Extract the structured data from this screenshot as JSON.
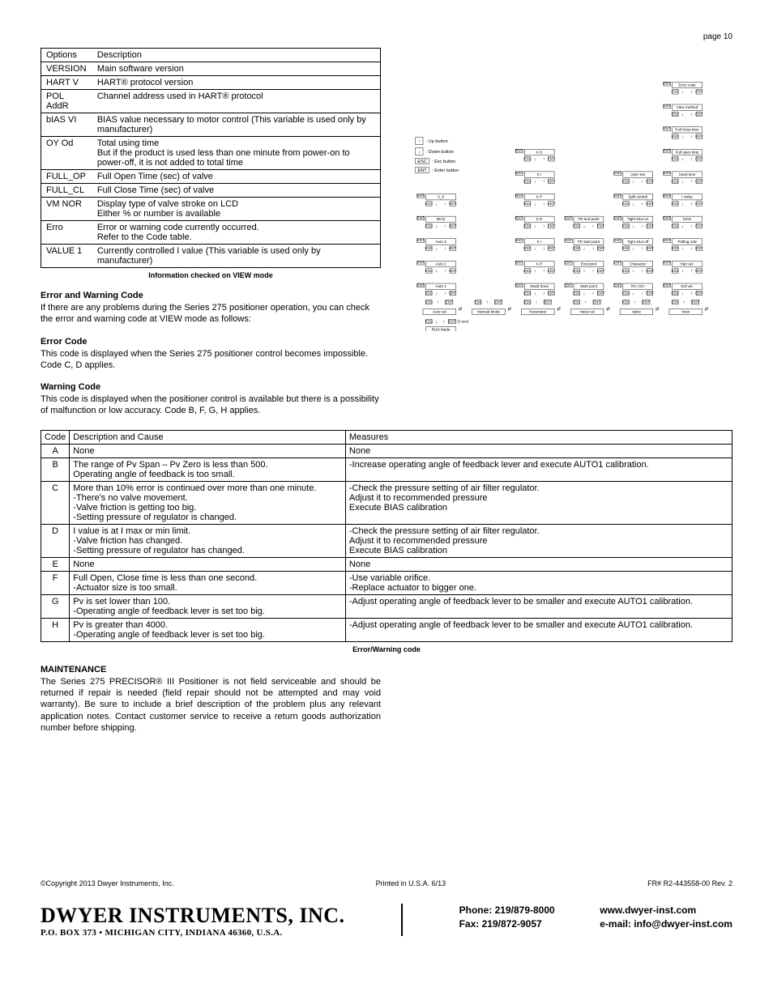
{
  "page_number": "page 10",
  "options_table": {
    "headers": [
      "Options",
      "Description"
    ],
    "rows": [
      [
        "VERSION",
        "Main software version"
      ],
      [
        "HART V",
        "HART® protocol version"
      ],
      [
        "POL AddR",
        "Channel address used in HART® protocol"
      ],
      [
        "bIAS VI",
        "BIAS value necessary to motor control (This variable is used only by manufacturer)"
      ],
      [
        "OY Od",
        "Total using time\nBut if the product is used less than one minute from power-on to power-off, it is not added to total time"
      ],
      [
        "FULL_OP",
        "Full Open Time (sec) of valve"
      ],
      [
        "FULL_CL",
        "Full Close Time (sec) of valve"
      ],
      [
        "VM NOR",
        "Display type of valve stroke on LCD\nEither % or number is available"
      ],
      [
        "Erro",
        "Error or warning code currently occurred.\nRefer to the Code table."
      ],
      [
        "VALUE 1",
        "Currently controlled I value (This variable is used only by manufacturer)"
      ]
    ],
    "caption": "Information checked on VIEW mode"
  },
  "error_warning_section": {
    "heading": "Error and Warning Code",
    "para": "If there are any problems during the Series 275 positioner operation, you can check the error and warning code at VIEW mode as follows:"
  },
  "error_code_section": {
    "heading": "Error Code",
    "para": "This code is displayed when the Series 275 positioner control becomes impossible.  Code C, D applies."
  },
  "warning_code_section": {
    "heading": "Warning Code",
    "para": "This code is displayed when the positioner control is available but there is a possibility of malfunction or low accuracy.  Code B, F, G, H applies."
  },
  "codes_table": {
    "headers": [
      "Code",
      "Description and Cause",
      "Measures"
    ],
    "rows": [
      {
        "code": "A",
        "desc": "None",
        "meas": "None"
      },
      {
        "code": "B",
        "desc": "The range of Pv Span – Pv Zero is less than 500.\nOperating angle of feedback is too small.",
        "meas": "-Increase operating angle of feedback lever and execute AUTO1 calibration."
      },
      {
        "code": "C",
        "desc": "More than 10% error is continued over more than one minute.\n-There's no valve movement.\n-Valve friction is getting too big.\n-Setting pressure of regulator is changed.",
        "meas": "-Check the pressure setting of air filter regulator.\n   Adjust it to recommended pressure\n   Execute BIAS calibration"
      },
      {
        "code": "D",
        "desc": "I value is at I max or min limit.\n-Valve friction has changed.\n-Setting pressure of regulator has changed.",
        "meas": "-Check the pressure setting of air filter regulator.\n   Adjust it to recommended pressure\n   Execute BIAS calibration"
      },
      {
        "code": "E",
        "desc": "None",
        "meas": "None"
      },
      {
        "code": "F",
        "desc": "Full Open, Close time is less than one second.\n-Actuator size is too small.",
        "meas": "-Use variable orifice.\n-Replace actuator to bigger one."
      },
      {
        "code": "G",
        "desc": "Pv is set lower than 100.\n-Operating angle of feedback lever is set too big.",
        "meas": "-Adjust operating angle of feedback lever to be smaller and execute AUTO1 calibration."
      },
      {
        "code": "H",
        "desc": "Pv is greater than 4000.\n-Operating angle of feedback lever is set too big.",
        "meas": "-Adjust operating angle of feedback lever to be smaller and execute AUTO1 calibration."
      }
    ],
    "caption": "Error/Warning code"
  },
  "maintenance": {
    "heading": "MAINTENANCE",
    "para": "The Series 275 PRECISOR® III Positioner is not field serviceable and should be returned if repair is needed (field repair should not be attempted and may void warranty). Be sure to include a brief description of the problem plus any relevant application notes. Contact customer service to receive a return goods authorization number before shipping."
  },
  "flow_diagram": {
    "legend": {
      "up": ": Up button",
      "down": ": Down button",
      "esc": ": Esc button",
      "enter": ": Enter button",
      "esc_label": "ESC",
      "ent_label": "ENT"
    },
    "columns": [
      {
        "bottom_enter": "Auto cal",
        "nodes": [
          "Auto 1",
          "Auto 2",
          "Auto 3",
          "BIAS",
          "V_0"
        ]
      },
      {
        "bottom_enter": "Manual Mode",
        "nodes": []
      },
      {
        "bottom_enter": "Parameter",
        "nodes": [
          "Dead Zone",
          "K P",
          "K I",
          "K D",
          "K P",
          "K I",
          "K D"
        ]
      },
      {
        "bottom_enter": "Hand cal",
        "nodes": [
          "Start point",
          "End point",
          "TR start point",
          "TR end point"
        ]
      },
      {
        "bottom_enter": "Valve",
        "nodes": [
          "RA / DA",
          "Character",
          "Tight shut off",
          "Tight shut on",
          "Split control",
          "User Set"
        ]
      },
      {
        "bottom_enter": "View",
        "nodes": [
          "Sof ver.",
          "Hart ver.",
          "Polling Add",
          "bIAS",
          "I value",
          "Used time",
          "Full open time",
          "Full close time",
          "View method",
          "Error code"
        ]
      }
    ],
    "run_mode_label": "RUN Mode",
    "ent_suffix_3sec": "(3 sec)",
    "btn_labels": {
      "esc": "ESC",
      "ent": "ENT"
    }
  },
  "footer_line": {
    "copyright": "©Copyright 2013 Dwyer Instruments, Inc.",
    "printed": "Printed in U.S.A. 6/13",
    "fr": "FR# R2-443558-00 Rev. 2"
  },
  "footer": {
    "company_name": "DWYER INSTRUMENTS, INC.",
    "company_addr": "P.O. BOX 373 • MICHIGAN CITY, INDIANA 46360, U.S.A.",
    "phone": "Phone: 219/879-8000",
    "fax": "Fax: 219/872-9057",
    "web": "www.dwyer-inst.com",
    "email": "e-mail: info@dwyer-inst.com"
  }
}
